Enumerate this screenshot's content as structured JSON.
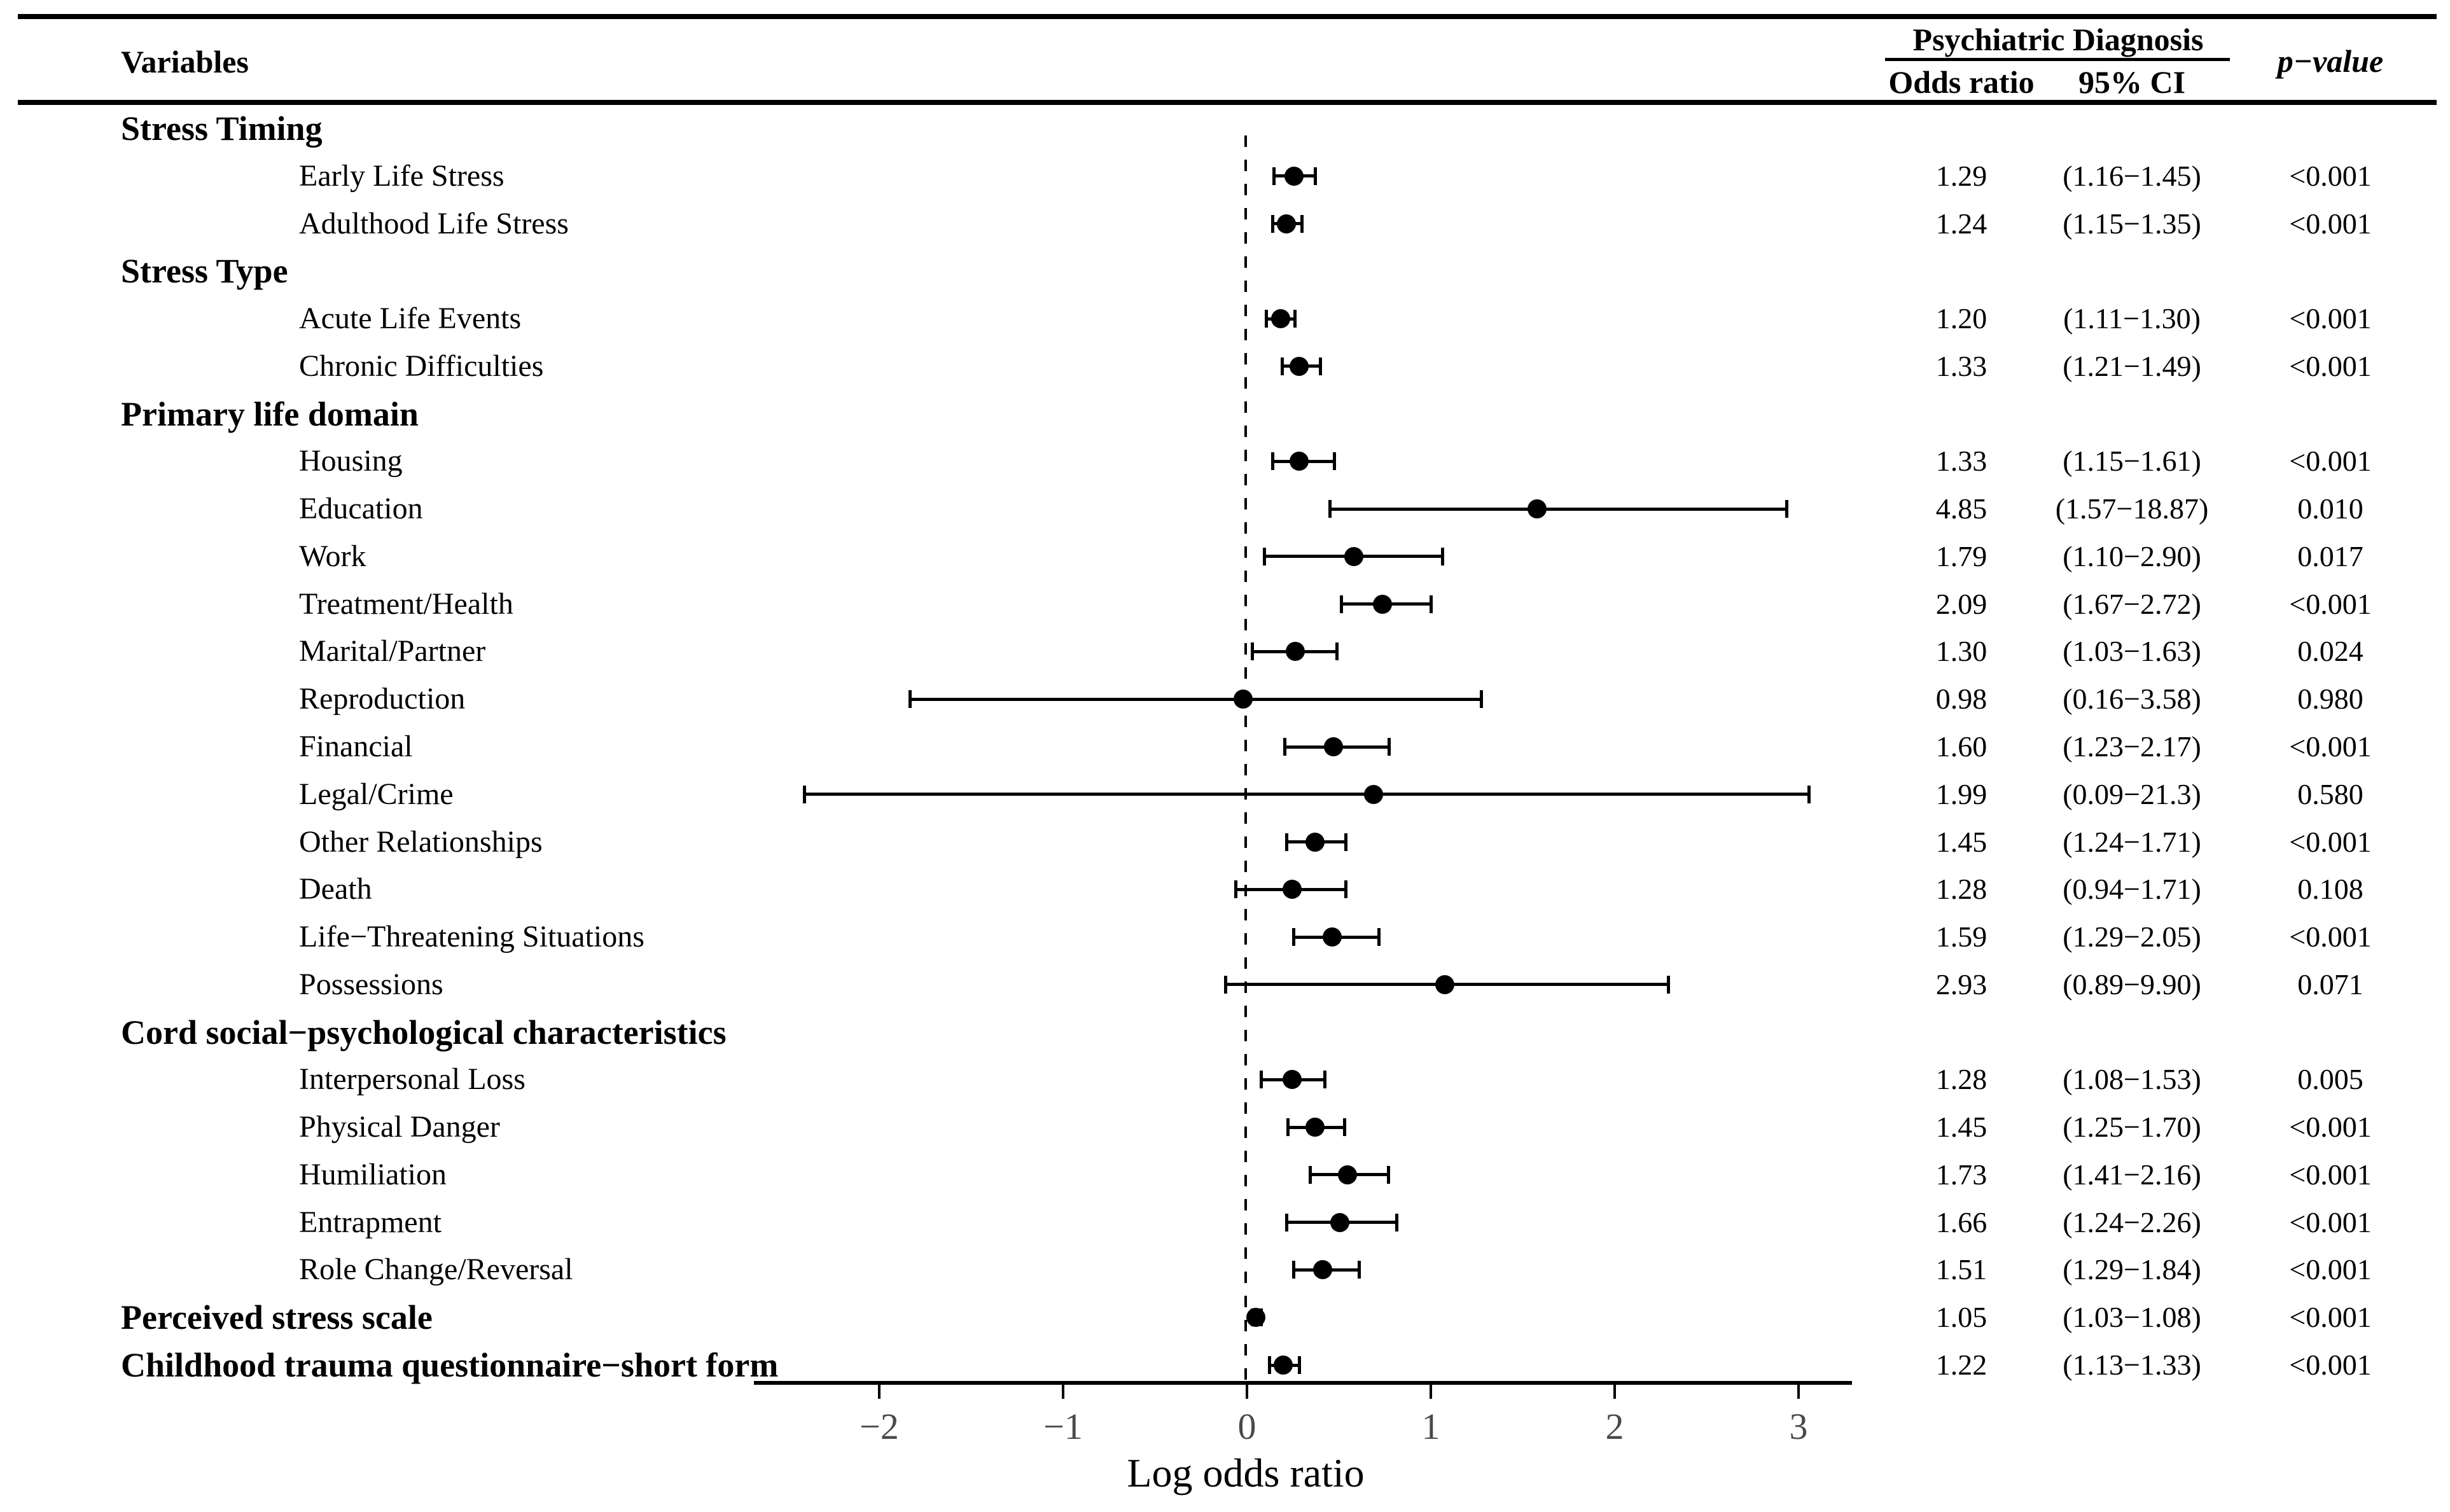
{
  "header": {
    "variables_label": "Variables",
    "group_label": "Psychiatric Diagnosis",
    "odds_ratio_label": "Odds ratio",
    "ci_label": "95% CI",
    "p_value_label": "p−value"
  },
  "chart_data": {
    "type": "scatter",
    "variant": "forest-plot",
    "title": "",
    "xlabel": "Log odds ratio",
    "x_ticks": [
      "−2",
      "−1",
      "0",
      "1",
      "2",
      "3"
    ],
    "x_tick_values": [
      -2,
      -1,
      0,
      1,
      2,
      3
    ],
    "xlim": [
      -2.68,
      3.29
    ],
    "reference_line_x": 0,
    "grid": "off",
    "note": "markers plotted at natural log of odds ratio; whiskers at ln of 95% CI bounds",
    "rows": [
      {
        "label": "Stress Timing",
        "level": "group"
      },
      {
        "label": "Early Life Stress",
        "level": "item",
        "odds_ratio": 1.29,
        "ci_low": 1.16,
        "ci_high": 1.45,
        "or_text": "1.29",
        "ci_text": "(1.16−1.45)",
        "p_text": "<0.001"
      },
      {
        "label": "Adulthood Life Stress",
        "level": "item",
        "odds_ratio": 1.24,
        "ci_low": 1.15,
        "ci_high": 1.35,
        "or_text": "1.24",
        "ci_text": "(1.15−1.35)",
        "p_text": "<0.001"
      },
      {
        "label": "Stress Type",
        "level": "group"
      },
      {
        "label": "Acute Life Events",
        "level": "item",
        "odds_ratio": 1.2,
        "ci_low": 1.11,
        "ci_high": 1.3,
        "or_text": "1.20",
        "ci_text": "(1.11−1.30)",
        "p_text": "<0.001"
      },
      {
        "label": "Chronic Difficulties",
        "level": "item",
        "odds_ratio": 1.33,
        "ci_low": 1.21,
        "ci_high": 1.49,
        "or_text": "1.33",
        "ci_text": "(1.21−1.49)",
        "p_text": "<0.001"
      },
      {
        "label": "Primary life domain",
        "level": "group"
      },
      {
        "label": "Housing",
        "level": "item",
        "odds_ratio": 1.33,
        "ci_low": 1.15,
        "ci_high": 1.61,
        "or_text": "1.33",
        "ci_text": "(1.15−1.61)",
        "p_text": "<0.001"
      },
      {
        "label": "Education",
        "level": "item",
        "odds_ratio": 4.85,
        "ci_low": 1.57,
        "ci_high": 18.87,
        "or_text": "4.85",
        "ci_text": "(1.57−18.87)",
        "p_text": "0.010"
      },
      {
        "label": "Work",
        "level": "item",
        "odds_ratio": 1.79,
        "ci_low": 1.1,
        "ci_high": 2.9,
        "or_text": "1.79",
        "ci_text": "(1.10−2.90)",
        "p_text": "0.017"
      },
      {
        "label": "Treatment/Health",
        "level": "item",
        "odds_ratio": 2.09,
        "ci_low": 1.67,
        "ci_high": 2.72,
        "or_text": "2.09",
        "ci_text": "(1.67−2.72)",
        "p_text": "<0.001"
      },
      {
        "label": "Marital/Partner",
        "level": "item",
        "odds_ratio": 1.3,
        "ci_low": 1.03,
        "ci_high": 1.63,
        "or_text": "1.30",
        "ci_text": "(1.03−1.63)",
        "p_text": "0.024"
      },
      {
        "label": "Reproduction",
        "level": "item",
        "odds_ratio": 0.98,
        "ci_low": 0.16,
        "ci_high": 3.58,
        "or_text": "0.98",
        "ci_text": "(0.16−3.58)",
        "p_text": "0.980"
      },
      {
        "label": "Financial",
        "level": "item",
        "odds_ratio": 1.6,
        "ci_low": 1.23,
        "ci_high": 2.17,
        "or_text": "1.60",
        "ci_text": "(1.23−2.17)",
        "p_text": "<0.001"
      },
      {
        "label": "Legal/Crime",
        "level": "item",
        "odds_ratio": 1.99,
        "ci_low": 0.09,
        "ci_high": 21.3,
        "or_text": "1.99",
        "ci_text": "(0.09−21.3)",
        "p_text": "0.580"
      },
      {
        "label": "Other Relationships",
        "level": "item",
        "odds_ratio": 1.45,
        "ci_low": 1.24,
        "ci_high": 1.71,
        "or_text": "1.45",
        "ci_text": "(1.24−1.71)",
        "p_text": "<0.001"
      },
      {
        "label": "Death",
        "level": "item",
        "odds_ratio": 1.28,
        "ci_low": 0.94,
        "ci_high": 1.71,
        "or_text": "1.28",
        "ci_text": "(0.94−1.71)",
        "p_text": "0.108"
      },
      {
        "label": "Life−Threatening Situations",
        "level": "item",
        "odds_ratio": 1.59,
        "ci_low": 1.29,
        "ci_high": 2.05,
        "or_text": "1.59",
        "ci_text": "(1.29−2.05)",
        "p_text": "<0.001"
      },
      {
        "label": "Possessions",
        "level": "item",
        "odds_ratio": 2.93,
        "ci_low": 0.89,
        "ci_high": 9.9,
        "or_text": "2.93",
        "ci_text": "(0.89−9.90)",
        "p_text": "0.071"
      },
      {
        "label": "Cord social−psychological characteristics",
        "level": "group"
      },
      {
        "label": "Interpersonal Loss",
        "level": "item",
        "odds_ratio": 1.28,
        "ci_low": 1.08,
        "ci_high": 1.53,
        "or_text": "1.28",
        "ci_text": "(1.08−1.53)",
        "p_text": "0.005"
      },
      {
        "label": "Physical Danger",
        "level": "item",
        "odds_ratio": 1.45,
        "ci_low": 1.25,
        "ci_high": 1.7,
        "or_text": "1.45",
        "ci_text": "(1.25−1.70)",
        "p_text": "<0.001"
      },
      {
        "label": "Humiliation",
        "level": "item",
        "odds_ratio": 1.73,
        "ci_low": 1.41,
        "ci_high": 2.16,
        "or_text": "1.73",
        "ci_text": "(1.41−2.16)",
        "p_text": "<0.001"
      },
      {
        "label": "Entrapment",
        "level": "item",
        "odds_ratio": 1.66,
        "ci_low": 1.24,
        "ci_high": 2.26,
        "or_text": "1.66",
        "ci_text": "(1.24−2.26)",
        "p_text": "<0.001"
      },
      {
        "label": "Role Change/Reversal",
        "level": "item",
        "odds_ratio": 1.51,
        "ci_low": 1.29,
        "ci_high": 1.84,
        "or_text": "1.51",
        "ci_text": "(1.29−1.84)",
        "p_text": "<0.001"
      },
      {
        "label": "Perceived stress scale",
        "level": "group",
        "odds_ratio": 1.05,
        "ci_low": 1.03,
        "ci_high": 1.08,
        "or_text": "1.05",
        "ci_text": "(1.03−1.08)",
        "p_text": "<0.001"
      },
      {
        "label": "Childhood trauma questionnaire−short form",
        "level": "group",
        "odds_ratio": 1.22,
        "ci_low": 1.13,
        "ci_high": 1.33,
        "or_text": "1.22",
        "ci_text": "(1.13−1.33)",
        "p_text": "<0.001"
      }
    ]
  }
}
